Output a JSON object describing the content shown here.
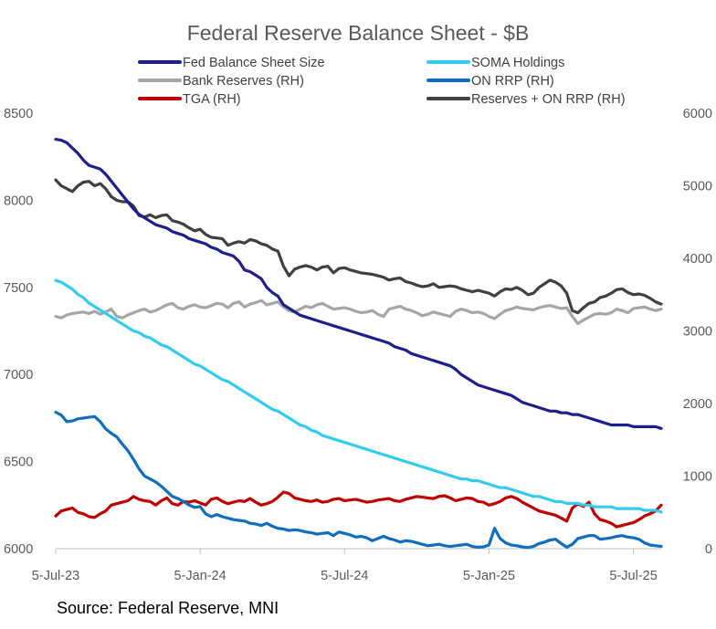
{
  "chart_data": {
    "type": "line",
    "title": "Federal Reserve Balance Sheet - $B",
    "x_tick_labels": [
      "5-Jul-23",
      "5-Jan-24",
      "5-Jul-24",
      "5-Jan-25",
      "5-Jul-25"
    ],
    "x_ticks": [
      0,
      26,
      52,
      78,
      104
    ],
    "xlim": [
      0,
      109
    ],
    "ylim_left": [
      6000,
      8500
    ],
    "yticks_left": [
      "8500",
      "8000",
      "7500",
      "7000",
      "6500",
      "6000"
    ],
    "ylim_right": [
      0,
      6000
    ],
    "yticks_right": [
      "6000",
      "5000",
      "4000",
      "3000",
      "2000",
      "1000",
      "0"
    ],
    "series": [
      {
        "name": "Fed Balance Sheet Size",
        "axis": "left",
        "color": "#1f1f8c",
        "values": [
          8350,
          8345,
          8330,
          8300,
          8270,
          8230,
          8200,
          8190,
          8180,
          8150,
          8110,
          8070,
          8030,
          7990,
          7950,
          7920,
          7900,
          7880,
          7860,
          7850,
          7840,
          7820,
          7810,
          7800,
          7780,
          7770,
          7760,
          7750,
          7730,
          7720,
          7700,
          7690,
          7680,
          7650,
          7600,
          7590,
          7570,
          7550,
          7500,
          7470,
          7450,
          7400,
          7380,
          7360,
          7340,
          7330,
          7320,
          7310,
          7300,
          7290,
          7280,
          7270,
          7260,
          7250,
          7240,
          7230,
          7220,
          7210,
          7200,
          7190,
          7180,
          7160,
          7150,
          7140,
          7120,
          7110,
          7100,
          7090,
          7080,
          7070,
          7060,
          7050,
          7030,
          7000,
          6980,
          6960,
          6940,
          6930,
          6920,
          6910,
          6900,
          6890,
          6880,
          6860,
          6840,
          6830,
          6820,
          6810,
          6800,
          6790,
          6790,
          6780,
          6780,
          6770,
          6770,
          6760,
          6750,
          6740,
          6730,
          6720,
          6710,
          6710,
          6710,
          6710,
          6700,
          6700,
          6700,
          6700,
          6700,
          6690
        ]
      },
      {
        "name": "SOMA Holdings",
        "axis": "left",
        "color": "#33ccee",
        "values": [
          7540,
          7530,
          7510,
          7490,
          7460,
          7440,
          7410,
          7390,
          7370,
          7350,
          7330,
          7310,
          7290,
          7270,
          7250,
          7240,
          7220,
          7210,
          7190,
          7170,
          7160,
          7140,
          7120,
          7100,
          7080,
          7060,
          7050,
          7030,
          7010,
          6990,
          6970,
          6960,
          6940,
          6920,
          6900,
          6880,
          6860,
          6840,
          6820,
          6800,
          6790,
          6770,
          6750,
          6730,
          6710,
          6700,
          6680,
          6670,
          6650,
          6640,
          6630,
          6620,
          6610,
          6600,
          6590,
          6580,
          6570,
          6560,
          6550,
          6540,
          6530,
          6520,
          6510,
          6500,
          6490,
          6480,
          6470,
          6460,
          6450,
          6440,
          6430,
          6420,
          6410,
          6400,
          6400,
          6390,
          6390,
          6380,
          6370,
          6360,
          6350,
          6350,
          6340,
          6330,
          6320,
          6310,
          6300,
          6300,
          6290,
          6280,
          6270,
          6270,
          6260,
          6260,
          6260,
          6250,
          6250,
          6240,
          6240,
          6240,
          6240,
          6230,
          6230,
          6230,
          6230,
          6230,
          6220,
          6220,
          6220,
          6210
        ]
      },
      {
        "name": "Bank Reserves (RH)",
        "axis": "right",
        "color": "#a6a6a6",
        "values": [
          3200,
          3180,
          3220,
          3240,
          3250,
          3260,
          3240,
          3270,
          3230,
          3260,
          3300,
          3200,
          3180,
          3220,
          3250,
          3280,
          3300,
          3260,
          3280,
          3320,
          3360,
          3380,
          3320,
          3300,
          3340,
          3360,
          3330,
          3320,
          3350,
          3380,
          3370,
          3320,
          3380,
          3400,
          3330,
          3370,
          3390,
          3420,
          3360,
          3380,
          3400,
          3330,
          3280,
          3260,
          3300,
          3340,
          3320,
          3360,
          3380,
          3340,
          3300,
          3310,
          3320,
          3300,
          3270,
          3250,
          3260,
          3280,
          3230,
          3200,
          3300,
          3320,
          3340,
          3300,
          3280,
          3250,
          3210,
          3230,
          3260,
          3240,
          3220,
          3200,
          3270,
          3300,
          3280,
          3250,
          3260,
          3240,
          3200,
          3170,
          3230,
          3280,
          3300,
          3330,
          3310,
          3300,
          3290,
          3320,
          3340,
          3350,
          3330,
          3310,
          3320,
          3200,
          3100,
          3150,
          3190,
          3230,
          3240,
          3230,
          3250,
          3300,
          3280,
          3250,
          3310,
          3320,
          3330,
          3300,
          3280,
          3300
        ]
      },
      {
        "name": "ON RRP (RH)",
        "axis": "right",
        "color": "#0f6fbe",
        "values": [
          1880,
          1840,
          1750,
          1760,
          1790,
          1800,
          1810,
          1820,
          1750,
          1650,
          1590,
          1540,
          1440,
          1350,
          1230,
          1100,
          1000,
          960,
          920,
          860,
          790,
          720,
          690,
          650,
          600,
          570,
          580,
          480,
          440,
          470,
          440,
          420,
          400,
          390,
          380,
          350,
          340,
          320,
          350,
          310,
          280,
          270,
          250,
          260,
          250,
          230,
          220,
          200,
          210,
          220,
          180,
          230,
          210,
          190,
          160,
          170,
          150,
          110,
          140,
          170,
          140,
          120,
          90,
          110,
          100,
          80,
          60,
          40,
          50,
          60,
          40,
          30,
          40,
          50,
          60,
          30,
          20,
          25,
          50,
          280,
          140,
          80,
          50,
          40,
          25,
          15,
          30,
          70,
          90,
          120,
          130,
          70,
          20,
          60,
          140,
          160,
          180,
          180,
          130,
          140,
          150,
          170,
          180,
          160,
          150,
          130,
          80,
          50,
          40,
          30
        ]
      },
      {
        "name": "TGA (RH)",
        "axis": "right",
        "color": "#c00000",
        "values": [
          450,
          520,
          540,
          560,
          500,
          480,
          440,
          430,
          480,
          520,
          600,
          620,
          640,
          660,
          720,
          680,
          660,
          650,
          600,
          660,
          700,
          620,
          600,
          650,
          640,
          660,
          630,
          600,
          680,
          700,
          650,
          620,
          640,
          660,
          650,
          690,
          640,
          600,
          620,
          650,
          710,
          780,
          760,
          700,
          680,
          660,
          650,
          670,
          640,
          650,
          680,
          690,
          660,
          670,
          680,
          660,
          640,
          650,
          670,
          680,
          690,
          660,
          650,
          680,
          700,
          720,
          710,
          700,
          690,
          720,
          730,
          700,
          660,
          680,
          700,
          690,
          650,
          640,
          600,
          620,
          650,
          700,
          720,
          690,
          640,
          600,
          560,
          520,
          500,
          480,
          460,
          420,
          380,
          560,
          620,
          580,
          640,
          480,
          400,
          380,
          350,
          300,
          320,
          340,
          360,
          400,
          450,
          480,
          520,
          600
        ]
      },
      {
        "name": "Reserves + ON RRP (RH)",
        "axis": "right",
        "color": "#404040",
        "values": [
          5080,
          5000,
          4960,
          4920,
          5000,
          5050,
          5060,
          5000,
          5030,
          4960,
          4850,
          4800,
          4780,
          4780,
          4720,
          4590,
          4570,
          4600,
          4560,
          4590,
          4600,
          4520,
          4500,
          4470,
          4420,
          4380,
          4400,
          4330,
          4290,
          4280,
          4270,
          4180,
          4210,
          4230,
          4210,
          4260,
          4240,
          4200,
          4180,
          4130,
          4100,
          3890,
          3760,
          3850,
          3880,
          3900,
          3880,
          3840,
          3880,
          3890,
          3800,
          3860,
          3870,
          3840,
          3820,
          3800,
          3790,
          3780,
          3760,
          3740,
          3700,
          3720,
          3730,
          3680,
          3660,
          3630,
          3610,
          3620,
          3650,
          3600,
          3610,
          3620,
          3610,
          3580,
          3560,
          3540,
          3560,
          3540,
          3520,
          3480,
          3540,
          3580,
          3570,
          3600,
          3560,
          3500,
          3520,
          3600,
          3650,
          3700,
          3670,
          3620,
          3520,
          3280,
          3250,
          3320,
          3380,
          3400,
          3460,
          3480,
          3520,
          3570,
          3580,
          3530,
          3500,
          3510,
          3490,
          3450,
          3400,
          3370
        ]
      }
    ],
    "legend": [
      {
        "label": "Fed Balance Sheet Size",
        "color": "#1f1f8c"
      },
      {
        "label": "SOMA Holdings",
        "color": "#33ccee"
      },
      {
        "label": "Bank Reserves (RH)",
        "color": "#a6a6a6"
      },
      {
        "label": "ON RRP (RH)",
        "color": "#0f6fbe"
      },
      {
        "label": "TGA (RH)",
        "color": "#c00000"
      },
      {
        "label": "Reserves + ON RRP (RH)",
        "color": "#404040"
      }
    ],
    "legend_position": "top"
  },
  "source": "Source: Federal Reserve, MNI"
}
